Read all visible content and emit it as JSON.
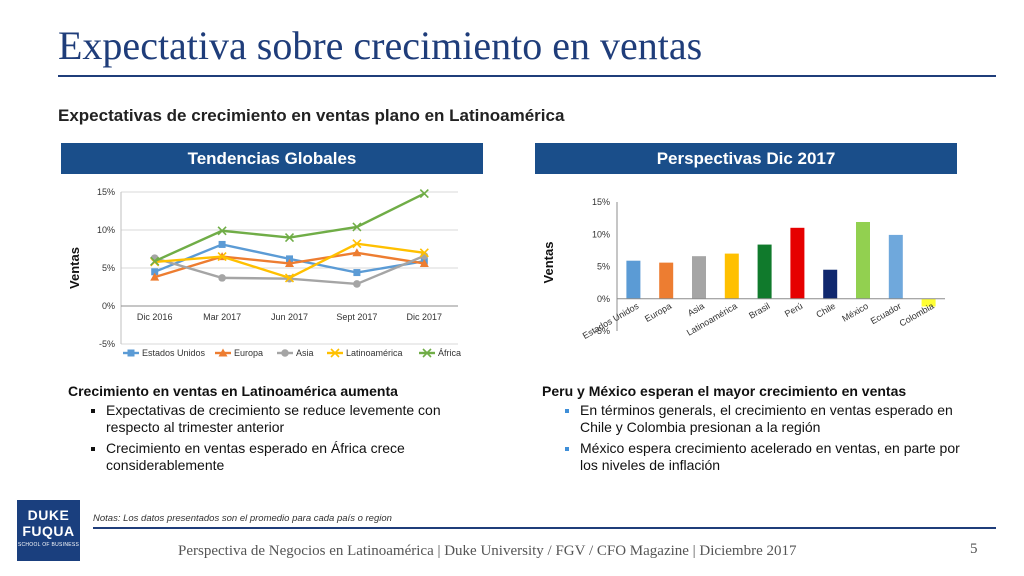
{
  "slide": {
    "title": "Expectativa sobre crecimiento en ventas",
    "subtitle": "Expectativas de crecimiento en ventas plano en Latinoamérica",
    "left_header": "Tendencias Globales",
    "right_header": "Perspectivas Dic 2017",
    "left_bullets": {
      "heading": "Crecimiento en ventas en Latinoamérica aumenta",
      "items": [
        "Expectativas de crecimiento se reduce levemente con respecto al trimester anterior",
        "Crecimiento en ventas esperado en África crece considerablemente"
      ]
    },
    "right_bullets": {
      "heading": "Peru y México esperan el mayor crecimiento en ventas",
      "items": [
        "En términos generals, el crecimiento en ventas esperado en Chile y Colombia presionan a la región",
        "México espera crecimiento acelerado en ventas, en parte por los niveles de inflación"
      ]
    },
    "logo": {
      "line1": "DUKE",
      "line2": "FUQUA",
      "line3": "SCHOOL OF BUSINESS"
    },
    "note": "Notas:  Los datos presentados son el promedio para cada país o region",
    "footer": "Perspectiva de Negocios en Latinoamérica | Duke University / FGV / CFO Magazine | Diciembre 2017",
    "page_number": "5"
  },
  "chart_data": [
    {
      "type": "line",
      "categories": [
        "Dic 2016",
        "Mar 2017",
        "Jun 2017",
        "Sept 2017",
        "Dic 2017"
      ],
      "ylabel": "Ventas",
      "ylim": [
        -5,
        15
      ],
      "yticks": [
        -5,
        0,
        5,
        10,
        15
      ],
      "ytick_labels": [
        "-5%",
        "0%",
        "5%",
        "10%",
        "15%"
      ],
      "grid": true,
      "legend": "bottom",
      "series": [
        {
          "name": "Estados Unidos",
          "color": "#5b9bd5",
          "marker": "square",
          "values": [
            4.5,
            8.1,
            6.2,
            4.4,
            5.9
          ]
        },
        {
          "name": "Europa",
          "color": "#ed7d31",
          "marker": "triangle",
          "values": [
            3.8,
            6.5,
            5.6,
            7.0,
            5.6
          ]
        },
        {
          "name": "Asia",
          "color": "#a5a5a5",
          "marker": "circle",
          "values": [
            6.3,
            3.7,
            3.6,
            2.9,
            6.6
          ]
        },
        {
          "name": "Latinoamérica",
          "color": "#ffc000",
          "marker": "x",
          "values": [
            5.8,
            6.5,
            3.7,
            8.2,
            7.0
          ]
        },
        {
          "name": "África",
          "color": "#70ad47",
          "marker": "x",
          "values": [
            5.9,
            9.9,
            9.0,
            10.4,
            14.8
          ]
        }
      ]
    },
    {
      "type": "bar",
      "categories": [
        "Estados Unidos",
        "Europa",
        "Asia",
        "Latinoamérica",
        "Brasil",
        "Perú",
        "Chile",
        "México",
        "Ecuador",
        "Colombia"
      ],
      "values": [
        5.9,
        5.6,
        6.6,
        7.0,
        8.4,
        11.0,
        4.5,
        11.9,
        9.9,
        -1.2
      ],
      "colors": [
        "#5b9bd5",
        "#ed7d31",
        "#a5a5a5",
        "#ffc000",
        "#107a2c",
        "#e60000",
        "#10286e",
        "#92d050",
        "#6fa8dc",
        "#ffff33"
      ],
      "ylabel": "Ventas",
      "ylim": [
        -5,
        15
      ],
      "yticks": [
        -5,
        0,
        5,
        10,
        15
      ],
      "ytick_labels": [
        "-5%",
        "0%",
        "5%",
        "10%",
        "15%"
      ],
      "grid": false
    }
  ]
}
